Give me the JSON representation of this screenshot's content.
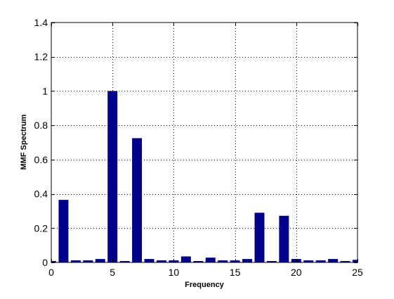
{
  "chart_data": {
    "type": "bar",
    "title": "",
    "xlabel": "Frequency",
    "ylabel": "MMF Spectrum",
    "xlim": [
      0,
      25
    ],
    "ylim": [
      0,
      1.4
    ],
    "xticks": [
      0,
      5,
      10,
      15,
      20,
      25
    ],
    "yticks": [
      0,
      0.2,
      0.4,
      0.6,
      0.8,
      1,
      1.2,
      1.4
    ],
    "xtick_labels": [
      "0",
      "5",
      "10",
      "15",
      "20",
      "25"
    ],
    "ytick_labels": [
      "0",
      "0.2",
      "0.4",
      "0.6",
      "0.8",
      "1",
      "1.2",
      "1.4"
    ],
    "grid": true,
    "bar_color": "#00008b",
    "x": [
      0,
      1,
      2,
      3,
      4,
      5,
      6,
      7,
      8,
      9,
      10,
      11,
      12,
      13,
      14,
      15,
      16,
      17,
      18,
      19,
      20,
      21,
      22,
      23,
      24,
      25
    ],
    "values": [
      0.008,
      0.365,
      0.012,
      0.012,
      0.02,
      1.0,
      0.008,
      0.725,
      0.02,
      0.012,
      0.012,
      0.035,
      0.008,
      0.028,
      0.012,
      0.012,
      0.02,
      0.29,
      0.008,
      0.272,
      0.02,
      0.012,
      0.012,
      0.02,
      0.008,
      0.015
    ]
  }
}
